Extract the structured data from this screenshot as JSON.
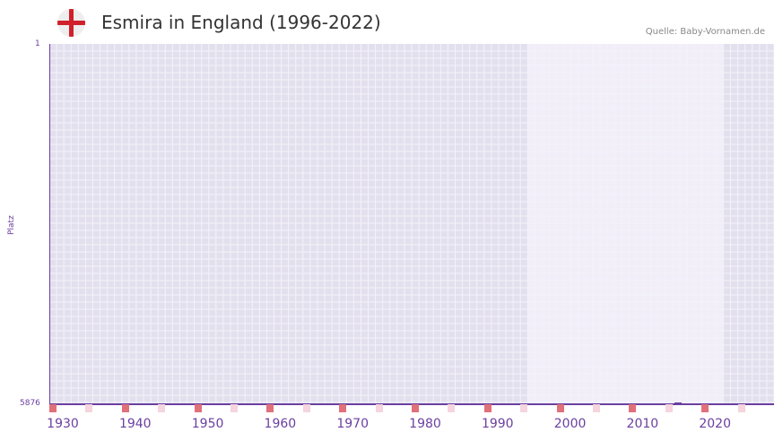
{
  "header": {
    "title": "Esmira in England (1996-2022)",
    "source": "Quelle: Baby-Vornamen.de",
    "flag_icon": "england-flag-icon"
  },
  "colors": {
    "axis": "#6a3fa0",
    "bg_dark": "#e3e0ee",
    "bg_light": "#f1eefa",
    "grid": "#f3f2f8",
    "marker_red": "#e0707a",
    "marker_pink": "#f5d5de",
    "flag_red": "#d0202a"
  },
  "chart_data": {
    "type": "line",
    "title": "Esmira in England (1996-2022)",
    "xlabel": "",
    "ylabel": "Platz",
    "x_ticks": [
      "1930",
      "1940",
      "1950",
      "1960",
      "1970",
      "1980",
      "1990",
      "2000",
      "2010",
      "2020"
    ],
    "x_range": [
      1928,
      2028
    ],
    "y_ticks": [
      "1",
      "5876"
    ],
    "ylim": [
      5876,
      1
    ],
    "y_inverted": true,
    "grid": true,
    "highlight_range": [
      1994,
      2021
    ],
    "series": [
      {
        "name": "Esmira",
        "x": [
          2014,
          2015
        ],
        "values": [
          5876,
          5876
        ]
      }
    ]
  },
  "axis": {
    "y_top": "1",
    "y_bottom": "5876",
    "y_title": "Platz",
    "x_ticks": [
      {
        "label": "1930",
        "year": 1930
      },
      {
        "label": "1940",
        "year": 1940
      },
      {
        "label": "1950",
        "year": 1950
      },
      {
        "label": "1960",
        "year": 1960
      },
      {
        "label": "1970",
        "year": 1970
      },
      {
        "label": "1980",
        "year": 1980
      },
      {
        "label": "1990",
        "year": 1990
      },
      {
        "label": "2000",
        "year": 2000
      },
      {
        "label": "2010",
        "year": 2010
      },
      {
        "label": "2020",
        "year": 2020
      }
    ]
  }
}
